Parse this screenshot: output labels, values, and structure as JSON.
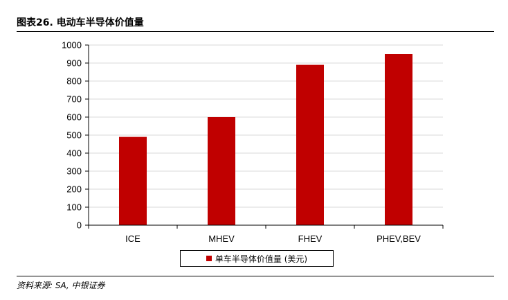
{
  "figure": {
    "title": "图表26. 电动车半导体价值量",
    "source": "资料来源: SA, 中银证券"
  },
  "colors": {
    "bar": "#c00000",
    "grid": "#d9d9d9",
    "axis": "#000000"
  },
  "chart_data": {
    "type": "bar",
    "categories": [
      "ICE",
      "MHEV",
      "FHEV",
      "PHEV,BEV"
    ],
    "series": [
      {
        "name": "单车半导体价值量 (美元)",
        "values": [
          490,
          600,
          890,
          950
        ]
      }
    ],
    "ylim": [
      0,
      1000
    ],
    "yticks": [
      0,
      100,
      200,
      300,
      400,
      500,
      600,
      700,
      800,
      900,
      1000
    ],
    "grid": true,
    "legend_position": "bottom"
  }
}
